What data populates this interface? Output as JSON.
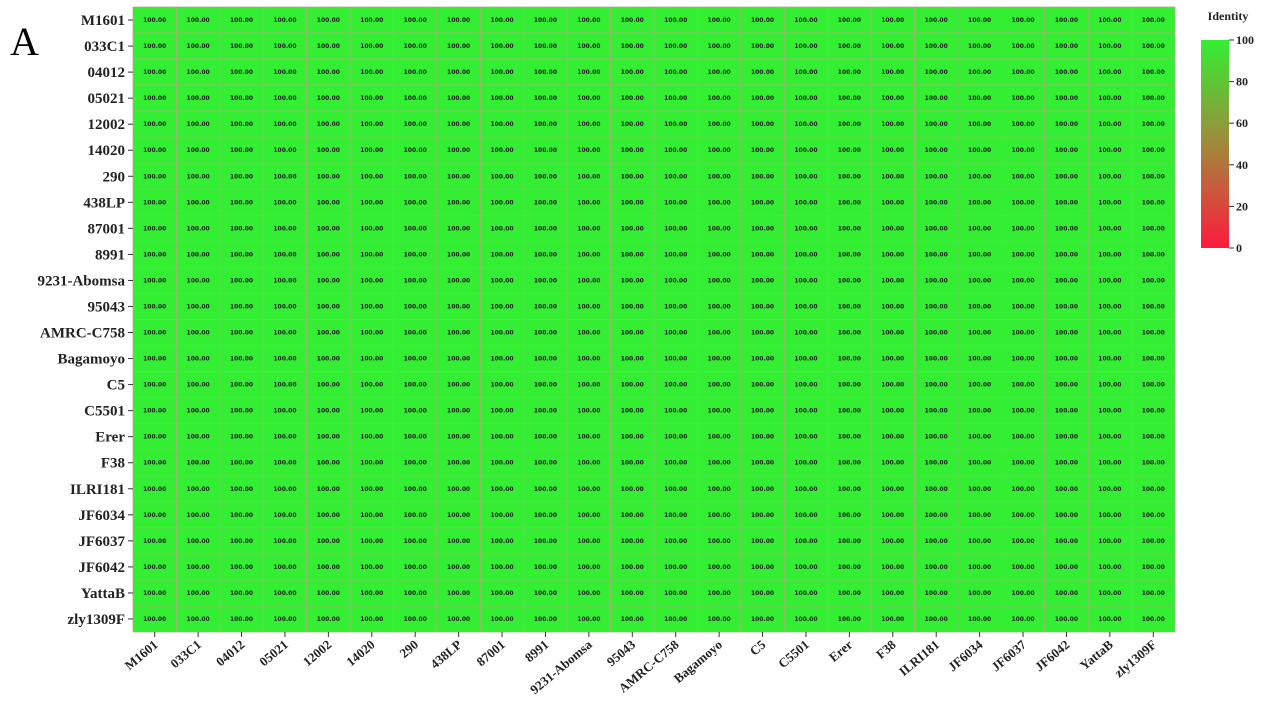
{
  "panel_label": "A",
  "chart_data": {
    "type": "heatmap",
    "title": "",
    "rows": [
      "M1601",
      "033C1",
      "04012",
      "05021",
      "12002",
      "14020",
      "290",
      "438LP",
      "87001",
      "8991",
      "9231-Abomsa",
      "95043",
      "AMRC-C758",
      "Bagamoyo",
      "C5",
      "C5501",
      "Erer",
      "F38",
      "ILRI181",
      "JF6034",
      "JF6037",
      "JF6042",
      "YattaB",
      "zly1309F"
    ],
    "columns": [
      "M1601",
      "033C1",
      "04012",
      "05021",
      "12002",
      "14020",
      "290",
      "438LP",
      "87001",
      "8991",
      "9231-Abomsa",
      "95043",
      "AMRC-C758",
      "Bagamoyo",
      "C5",
      "C5501",
      "Erer",
      "F38",
      "ILRI181",
      "JF6034",
      "JF6037",
      "JF6042",
      "YattaB",
      "zly1309F"
    ],
    "value_all_cells": 100.0,
    "cell_label": "100.00",
    "colorbar": {
      "title": "Identity",
      "min": 0,
      "max": 100,
      "ticks": [
        0,
        20,
        40,
        60,
        80,
        100
      ],
      "color_min": "#ff1a3c",
      "color_max": "#33ee33"
    },
    "cell_border_color": "#b5a878"
  }
}
